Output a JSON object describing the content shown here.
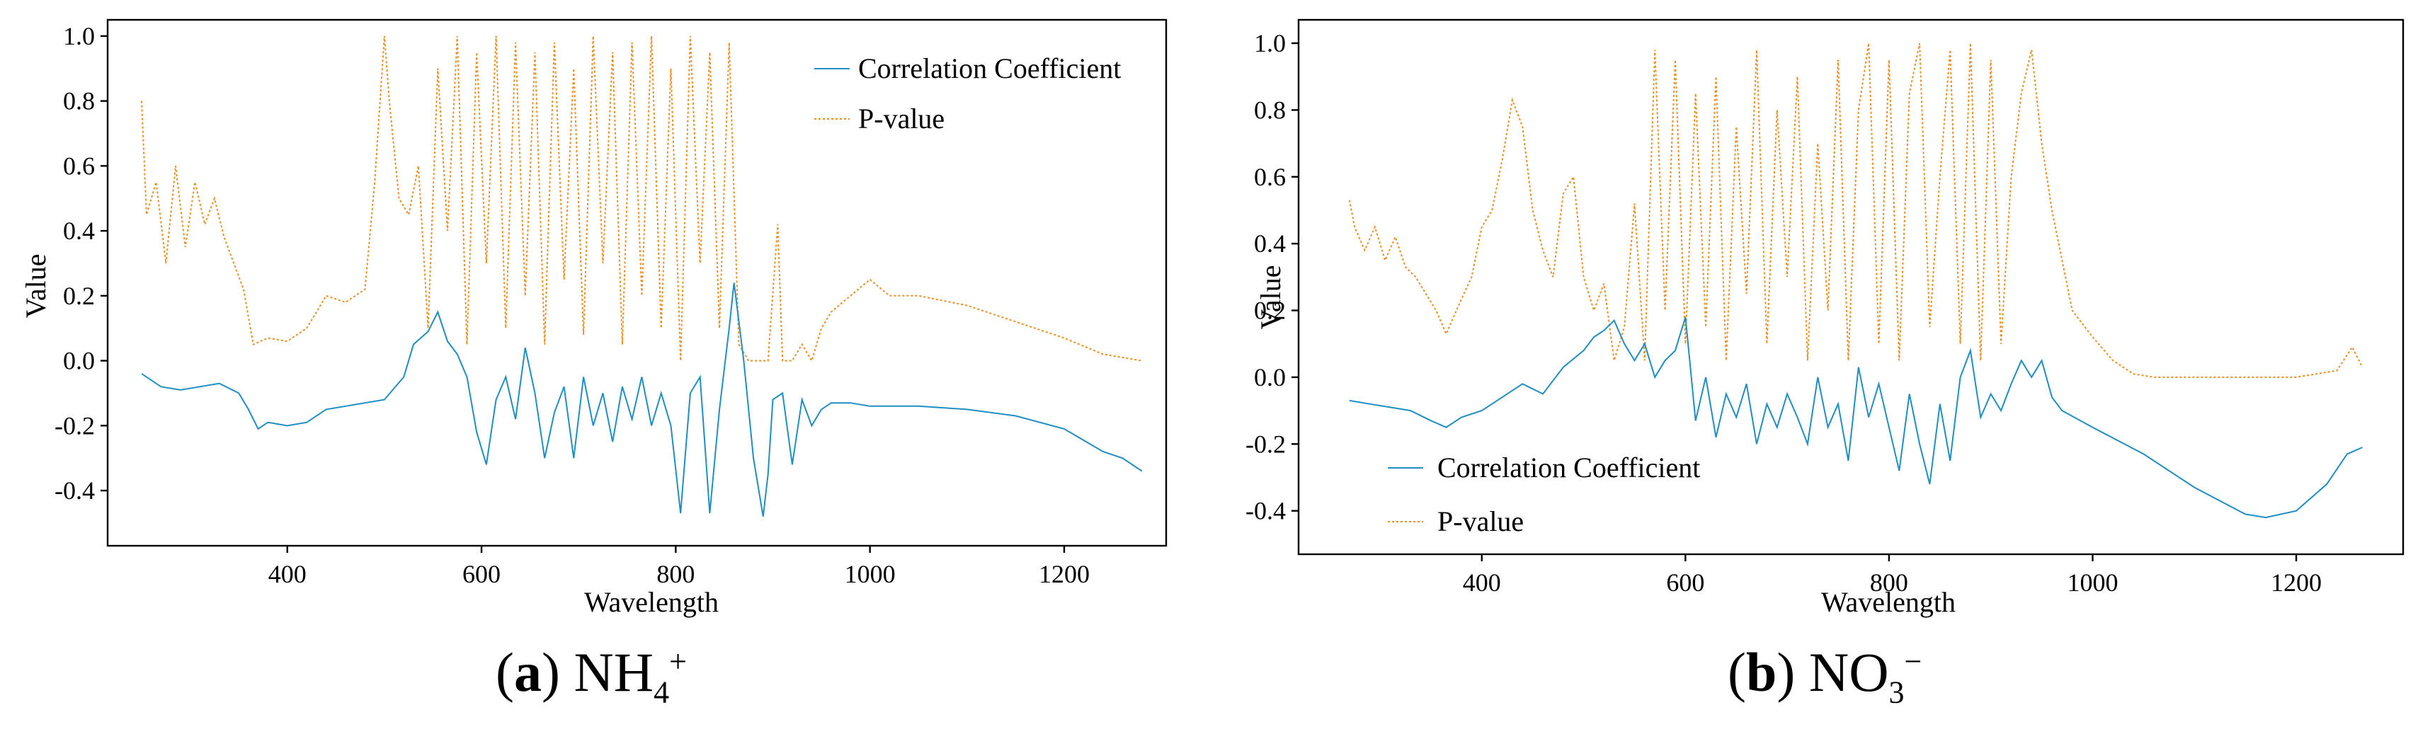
{
  "colors": {
    "correlation": "#1f8ec4",
    "pvalue": "#f28c1e"
  },
  "captions": [
    {
      "letter": "a",
      "species": "NH",
      "sub": "4",
      "sup": "+"
    },
    {
      "letter": "b",
      "species": "NO",
      "sub": "3",
      "sup": "−"
    }
  ],
  "chart_data": [
    {
      "type": "line",
      "panel": "a",
      "xlabel": "Wavelength",
      "ylabel": "Value",
      "xlim": [
        215,
        1305
      ],
      "ylim": [
        -0.57,
        1.05
      ],
      "xticks": [
        400,
        600,
        800,
        1000,
        1200
      ],
      "yticks": [
        -0.4,
        -0.2,
        0.0,
        0.2,
        0.4,
        0.6,
        0.8,
        1.0
      ],
      "ytick_labels": [
        "-0.4",
        "-0.2",
        "0.0",
        "0.2",
        "0.4",
        "0.6",
        "0.8",
        "1.0"
      ],
      "legend": {
        "position": "top-right",
        "entries": [
          "Correlation Coefficient",
          "P-value"
        ]
      },
      "series": [
        {
          "name": "Correlation Coefficient",
          "style": "solid",
          "x": [
            250,
            270,
            290,
            310,
            330,
            350,
            360,
            370,
            380,
            400,
            420,
            440,
            460,
            480,
            500,
            520,
            530,
            545,
            555,
            565,
            575,
            585,
            595,
            605,
            615,
            625,
            635,
            645,
            655,
            665,
            675,
            685,
            695,
            705,
            715,
            725,
            735,
            745,
            755,
            765,
            775,
            785,
            795,
            805,
            815,
            825,
            835,
            845,
            855,
            860,
            870,
            880,
            890,
            895,
            900,
            910,
            920,
            930,
            940,
            950,
            960,
            980,
            1000,
            1050,
            1100,
            1150,
            1200,
            1240,
            1260,
            1280
          ],
          "y": [
            -0.04,
            -0.08,
            -0.09,
            -0.08,
            -0.07,
            -0.1,
            -0.15,
            -0.21,
            -0.19,
            -0.2,
            -0.19,
            -0.15,
            -0.14,
            -0.13,
            -0.12,
            -0.05,
            0.05,
            0.09,
            0.15,
            0.06,
            0.02,
            -0.05,
            -0.22,
            -0.32,
            -0.12,
            -0.05,
            -0.18,
            0.04,
            -0.1,
            -0.3,
            -0.16,
            -0.08,
            -0.3,
            -0.05,
            -0.2,
            -0.1,
            -0.25,
            -0.08,
            -0.18,
            -0.05,
            -0.2,
            -0.1,
            -0.2,
            -0.47,
            -0.1,
            -0.05,
            -0.47,
            -0.15,
            0.1,
            0.24,
            0.0,
            -0.3,
            -0.48,
            -0.35,
            -0.12,
            -0.1,
            -0.32,
            -0.12,
            -0.2,
            -0.15,
            -0.13,
            -0.13,
            -0.14,
            -0.14,
            -0.15,
            -0.17,
            -0.21,
            -0.28,
            -0.3,
            -0.34
          ]
        },
        {
          "name": "P-value",
          "style": "dotted",
          "x": [
            250,
            255,
            265,
            275,
            285,
            295,
            305,
            315,
            325,
            335,
            345,
            355,
            365,
            380,
            400,
            420,
            440,
            460,
            480,
            490,
            500,
            505,
            515,
            525,
            535,
            545,
            555,
            565,
            575,
            585,
            595,
            605,
            615,
            625,
            635,
            645,
            655,
            665,
            675,
            685,
            695,
            705,
            715,
            725,
            735,
            745,
            755,
            765,
            775,
            785,
            795,
            805,
            815,
            825,
            835,
            845,
            855,
            865,
            875,
            885,
            895,
            905,
            910,
            920,
            930,
            940,
            950,
            960,
            980,
            1000,
            1020,
            1050,
            1100,
            1150,
            1200,
            1240,
            1260,
            1280
          ],
          "y": [
            0.8,
            0.45,
            0.55,
            0.3,
            0.6,
            0.35,
            0.55,
            0.42,
            0.5,
            0.38,
            0.3,
            0.22,
            0.05,
            0.07,
            0.06,
            0.1,
            0.2,
            0.18,
            0.22,
            0.55,
            1.0,
            0.8,
            0.5,
            0.45,
            0.6,
            0.1,
            0.9,
            0.4,
            1.0,
            0.05,
            0.95,
            0.3,
            1.0,
            0.1,
            0.98,
            0.2,
            0.95,
            0.05,
            0.98,
            0.25,
            0.9,
            0.08,
            1.0,
            0.3,
            0.95,
            0.05,
            0.98,
            0.2,
            1.0,
            0.1,
            0.9,
            0.0,
            1.0,
            0.3,
            0.95,
            0.1,
            0.98,
            0.05,
            0.0,
            0.0,
            0.0,
            0.42,
            0.0,
            0.0,
            0.05,
            0.0,
            0.1,
            0.15,
            0.2,
            0.25,
            0.2,
            0.2,
            0.17,
            0.12,
            0.07,
            0.02,
            0.01,
            0.0
          ]
        }
      ]
    },
    {
      "type": "line",
      "panel": "b",
      "xlabel": "Wavelength",
      "ylabel": "Value",
      "xlim": [
        220,
        1305
      ],
      "ylim": [
        -0.53,
        1.07
      ],
      "xticks": [
        400,
        600,
        800,
        1000,
        1200
      ],
      "yticks": [
        -0.4,
        -0.2,
        0.0,
        0.2,
        0.4,
        0.6,
        0.8,
        1.0
      ],
      "ytick_labels": [
        "-0.4",
        "-0.2",
        "0.0",
        "0.2",
        "0.4",
        "0.6",
        "0.8",
        "1.0"
      ],
      "legend": {
        "position": "bottom-left",
        "entries": [
          "Correlation Coefficient",
          "P-value"
        ]
      },
      "series": [
        {
          "name": "Correlation Coefficient",
          "style": "solid",
          "x": [
            270,
            290,
            310,
            330,
            350,
            365,
            380,
            400,
            420,
            440,
            460,
            480,
            500,
            510,
            520,
            530,
            540,
            550,
            560,
            570,
            580,
            590,
            600,
            610,
            620,
            630,
            640,
            650,
            660,
            670,
            680,
            690,
            700,
            710,
            720,
            730,
            740,
            750,
            760,
            770,
            780,
            790,
            800,
            810,
            820,
            830,
            840,
            850,
            860,
            870,
            880,
            890,
            900,
            910,
            920,
            930,
            940,
            950,
            960,
            970,
            1000,
            1050,
            1100,
            1150,
            1170,
            1200,
            1230,
            1250,
            1265
          ],
          "y": [
            -0.07,
            -0.08,
            -0.09,
            -0.1,
            -0.13,
            -0.15,
            -0.12,
            -0.1,
            -0.06,
            -0.02,
            -0.05,
            0.03,
            0.08,
            0.12,
            0.14,
            0.17,
            0.1,
            0.05,
            0.1,
            0.0,
            0.05,
            0.08,
            0.18,
            -0.13,
            0.0,
            -0.18,
            -0.05,
            -0.12,
            -0.02,
            -0.2,
            -0.08,
            -0.15,
            -0.05,
            -0.12,
            -0.2,
            0.0,
            -0.15,
            -0.08,
            -0.25,
            0.03,
            -0.12,
            -0.02,
            -0.15,
            -0.28,
            -0.05,
            -0.2,
            -0.32,
            -0.08,
            -0.25,
            0.0,
            0.08,
            -0.12,
            -0.05,
            -0.1,
            -0.02,
            0.05,
            0.0,
            0.05,
            -0.06,
            -0.1,
            -0.15,
            -0.23,
            -0.33,
            -0.41,
            -0.42,
            -0.4,
            -0.32,
            -0.23,
            -0.21
          ]
        },
        {
          "name": "P-value",
          "style": "dotted",
          "x": [
            270,
            275,
            285,
            295,
            305,
            315,
            325,
            335,
            345,
            355,
            365,
            375,
            390,
            400,
            410,
            420,
            430,
            440,
            450,
            460,
            470,
            480,
            490,
            500,
            510,
            520,
            530,
            540,
            550,
            560,
            570,
            580,
            590,
            600,
            610,
            620,
            630,
            640,
            650,
            660,
            670,
            680,
            690,
            700,
            710,
            720,
            730,
            740,
            750,
            760,
            770,
            780,
            790,
            800,
            810,
            820,
            830,
            840,
            850,
            860,
            870,
            880,
            890,
            900,
            910,
            920,
            930,
            940,
            950,
            960,
            980,
            1000,
            1020,
            1040,
            1060,
            1100,
            1150,
            1200,
            1240,
            1255,
            1265
          ],
          "y": [
            0.53,
            0.45,
            0.38,
            0.45,
            0.35,
            0.42,
            0.33,
            0.3,
            0.25,
            0.2,
            0.13,
            0.2,
            0.3,
            0.45,
            0.5,
            0.65,
            0.83,
            0.75,
            0.5,
            0.38,
            0.3,
            0.55,
            0.6,
            0.3,
            0.2,
            0.28,
            0.05,
            0.15,
            0.52,
            0.05,
            0.98,
            0.2,
            0.95,
            0.1,
            0.85,
            0.15,
            0.9,
            0.05,
            0.75,
            0.25,
            0.98,
            0.1,
            0.8,
            0.3,
            0.9,
            0.05,
            0.7,
            0.2,
            0.95,
            0.05,
            0.8,
            1.0,
            0.1,
            0.95,
            0.05,
            0.85,
            1.0,
            0.15,
            0.6,
            0.98,
            0.1,
            1.0,
            0.05,
            0.95,
            0.1,
            0.6,
            0.85,
            0.98,
            0.7,
            0.5,
            0.2,
            0.12,
            0.05,
            0.01,
            0.0,
            0.0,
            0.0,
            0.0,
            0.02,
            0.09,
            0.03
          ]
        }
      ]
    }
  ]
}
